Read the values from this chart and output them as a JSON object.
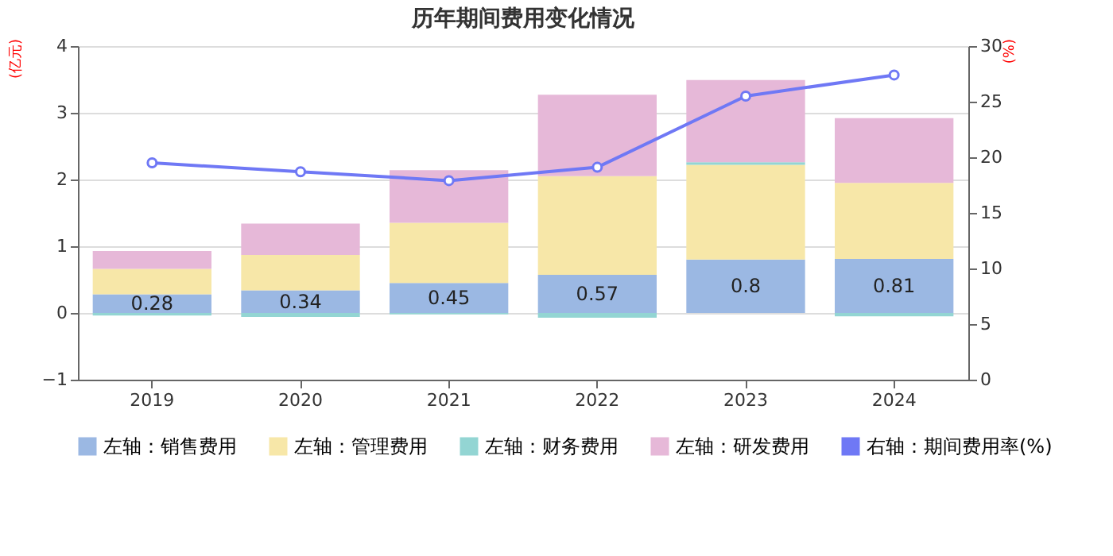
{
  "chart_data": {
    "type": "bar",
    "title": "历年期间费用变化情况",
    "ylabel": "(亿元)",
    "y2label": "(%)",
    "categories": [
      "2019",
      "2020",
      "2021",
      "2022",
      "2023",
      "2024"
    ],
    "stacked": true,
    "series": [
      {
        "name": "左轴：销售费用",
        "color": "#9bb8e3",
        "values": [
          0.28,
          0.34,
          0.45,
          0.57,
          0.8,
          0.81
        ],
        "value_labels": [
          "0.28",
          "0.34",
          "0.45",
          "0.57",
          "0.8",
          "0.81"
        ]
      },
      {
        "name": "左轴：管理费用",
        "color": "#f7e7a8",
        "values": [
          0.38,
          0.53,
          0.9,
          1.48,
          1.42,
          1.14
        ]
      },
      {
        "name": "左轴：财务费用",
        "color": "#93d5d3",
        "values": [
          -0.04,
          -0.06,
          -0.02,
          -0.07,
          0.04,
          -0.05
        ]
      },
      {
        "name": "左轴：研发费用",
        "color": "#e6b8d8",
        "values": [
          0.27,
          0.47,
          0.79,
          1.22,
          1.23,
          0.97
        ]
      },
      {
        "name": "右轴：期间费用率(%)",
        "color": "#6f78f5",
        "type": "line",
        "axis": "y2",
        "marker": "circle",
        "values": [
          19.5,
          18.7,
          17.9,
          19.1,
          25.5,
          27.4
        ]
      }
    ],
    "ylim": [
      -1,
      4
    ],
    "yticks": [
      -1,
      0,
      1,
      2,
      3,
      4
    ],
    "y2lim": [
      0,
      30
    ],
    "y2ticks": [
      0,
      5,
      10,
      15,
      20,
      25,
      30
    ],
    "grid": "y",
    "legend": "bottom"
  }
}
